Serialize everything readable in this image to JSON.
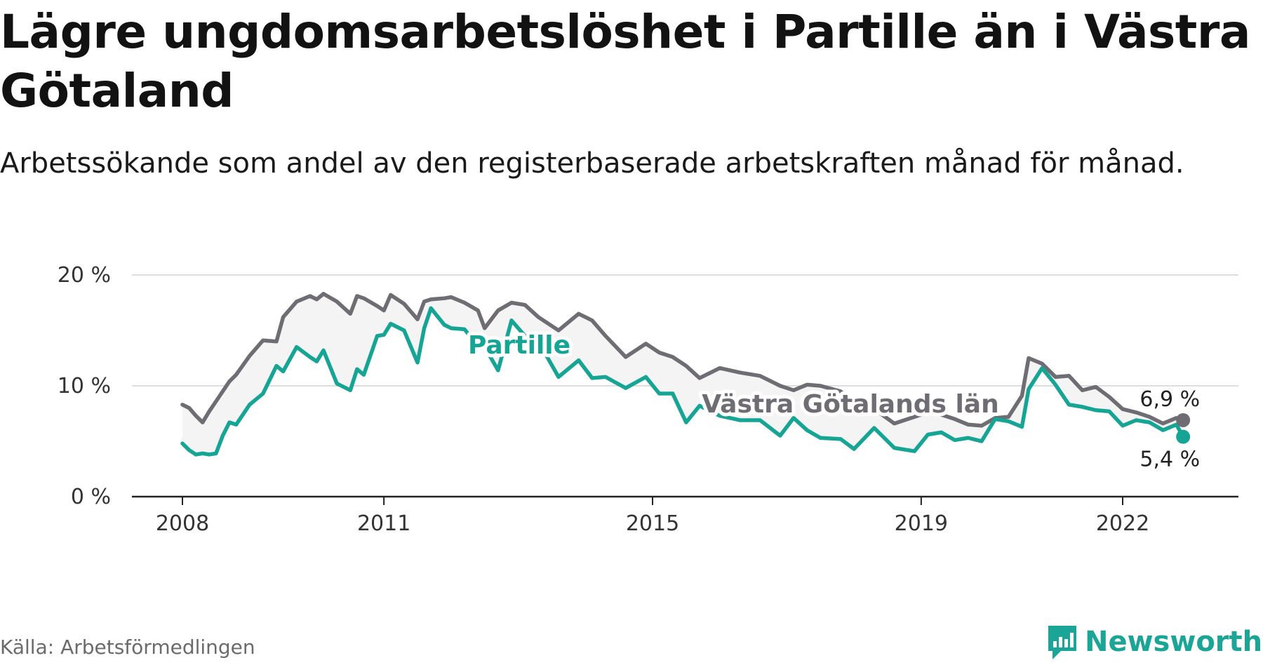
{
  "title": "Lägre ungdomsarbetslöshet i Partille än i Västra Götaland",
  "subtitle": "Arbetssökande som andel av den registerbaserade arbetskraften månad för månad.",
  "source": "Källa: Arbetsförmedlingen",
  "brand": {
    "name": "Newsworthy",
    "icon": "newsworthy-logo-icon",
    "color": "#1aa596"
  },
  "chart_data": {
    "type": "line",
    "title": "Lägre ungdomsarbetslöshet i Partille än i Västra Götaland",
    "xlabel": "",
    "ylabel": "",
    "ylim": [
      0,
      20
    ],
    "xlim": [
      2007.7,
      2023.4
    ],
    "grid": true,
    "y_ticks": [
      {
        "value": 0,
        "label": "0 %"
      },
      {
        "value": 10,
        "label": "10 %"
      },
      {
        "value": 20,
        "label": "20 %"
      }
    ],
    "x_ticks": [
      {
        "value": 2008,
        "label": "2008"
      },
      {
        "value": 2011,
        "label": "2011"
      },
      {
        "value": 2015,
        "label": "2015"
      },
      {
        "value": 2019,
        "label": "2019"
      },
      {
        "value": 2022,
        "label": "2022"
      }
    ],
    "series": [
      {
        "name": "Västra Götalands län",
        "color": "#6f6c73",
        "label": "Västra Götalands län",
        "end_label": "6,9 %",
        "x": [
          2008.0,
          2008.1,
          2008.2,
          2008.3,
          2008.4,
          2008.5,
          2008.6,
          2008.7,
          2008.8,
          2009.0,
          2009.2,
          2009.4,
          2009.5,
          2009.7,
          2009.9,
          2010.0,
          2010.1,
          2010.3,
          2010.5,
          2010.6,
          2010.7,
          2010.9,
          2011.0,
          2011.1,
          2011.3,
          2011.5,
          2011.6,
          2011.7,
          2011.9,
          2012.0,
          2012.2,
          2012.4,
          2012.5,
          2012.7,
          2012.9,
          2013.1,
          2013.3,
          2013.6,
          2013.9,
          2014.1,
          2014.3,
          2014.6,
          2014.9,
          2015.1,
          2015.3,
          2015.5,
          2015.7,
          2016.0,
          2016.3,
          2016.6,
          2016.9,
          2017.1,
          2017.3,
          2017.5,
          2017.8,
          2018.0,
          2018.3,
          2018.6,
          2018.9,
          2019.1,
          2019.3,
          2019.5,
          2019.7,
          2019.9,
          2020.1,
          2020.3,
          2020.5,
          2020.6,
          2020.8,
          2021.0,
          2021.2,
          2021.4,
          2021.6,
          2021.8,
          2022.0,
          2022.2,
          2022.4,
          2022.6,
          2022.8,
          2022.9
        ],
        "values": [
          8.3,
          8.0,
          7.3,
          6.7,
          7.7,
          8.6,
          9.5,
          10.4,
          11.0,
          12.7,
          14.1,
          14.0,
          16.2,
          17.6,
          18.1,
          17.8,
          18.3,
          17.6,
          16.5,
          18.1,
          17.9,
          17.2,
          16.8,
          18.2,
          17.4,
          16.0,
          17.6,
          17.8,
          17.9,
          18.0,
          17.5,
          16.8,
          15.2,
          16.8,
          17.5,
          17.3,
          16.2,
          15.0,
          16.5,
          15.9,
          14.5,
          12.6,
          13.8,
          13.0,
          12.6,
          11.8,
          10.7,
          11.6,
          11.2,
          10.9,
          10.0,
          9.6,
          10.1,
          10.0,
          9.5,
          8.4,
          7.9,
          6.6,
          7.2,
          7.6,
          7.4,
          7.0,
          6.5,
          6.4,
          7.1,
          7.2,
          9.1,
          12.5,
          12.0,
          10.8,
          10.9,
          9.6,
          9.9,
          9.0,
          7.9,
          7.6,
          7.2,
          6.6,
          7.1,
          6.9
        ]
      },
      {
        "name": "Partille",
        "color": "#16a495",
        "label": "Partille",
        "end_label": "5,4 %",
        "x": [
          2008.0,
          2008.1,
          2008.2,
          2008.3,
          2008.4,
          2008.5,
          2008.6,
          2008.7,
          2008.8,
          2009.0,
          2009.2,
          2009.4,
          2009.5,
          2009.7,
          2009.9,
          2010.0,
          2010.1,
          2010.3,
          2010.5,
          2010.6,
          2010.7,
          2010.9,
          2011.0,
          2011.1,
          2011.3,
          2011.5,
          2011.6,
          2011.7,
          2011.9,
          2012.0,
          2012.2,
          2012.4,
          2012.5,
          2012.7,
          2012.9,
          2013.1,
          2013.3,
          2013.6,
          2013.9,
          2014.1,
          2014.3,
          2014.6,
          2014.9,
          2015.1,
          2015.3,
          2015.5,
          2015.7,
          2016.0,
          2016.3,
          2016.6,
          2016.9,
          2017.1,
          2017.3,
          2017.5,
          2017.8,
          2018.0,
          2018.3,
          2018.6,
          2018.9,
          2019.1,
          2019.3,
          2019.5,
          2019.7,
          2019.9,
          2020.1,
          2020.3,
          2020.5,
          2020.6,
          2020.8,
          2021.0,
          2021.2,
          2021.4,
          2021.6,
          2021.8,
          2022.0,
          2022.2,
          2022.4,
          2022.6,
          2022.8,
          2022.9
        ],
        "values": [
          4.8,
          4.2,
          3.8,
          3.9,
          3.8,
          3.9,
          5.5,
          6.7,
          6.5,
          8.3,
          9.3,
          11.8,
          11.3,
          13.5,
          12.6,
          12.2,
          13.2,
          10.2,
          9.6,
          11.5,
          11.0,
          14.5,
          14.6,
          15.6,
          15.0,
          12.1,
          15.2,
          17.0,
          15.5,
          15.2,
          15.1,
          13.6,
          13.5,
          11.4,
          15.9,
          14.5,
          14.0,
          10.8,
          12.3,
          10.7,
          10.8,
          9.8,
          10.8,
          9.3,
          9.3,
          6.7,
          8.2,
          7.3,
          6.9,
          6.9,
          5.5,
          7.1,
          6.0,
          5.3,
          5.2,
          4.3,
          6.2,
          4.4,
          4.1,
          5.6,
          5.8,
          5.1,
          5.3,
          5.0,
          7.0,
          6.8,
          6.3,
          9.7,
          11.6,
          10.1,
          8.3,
          8.1,
          7.8,
          7.7,
          6.4,
          6.9,
          6.7,
          6.0,
          6.5,
          5.4
        ]
      }
    ]
  }
}
